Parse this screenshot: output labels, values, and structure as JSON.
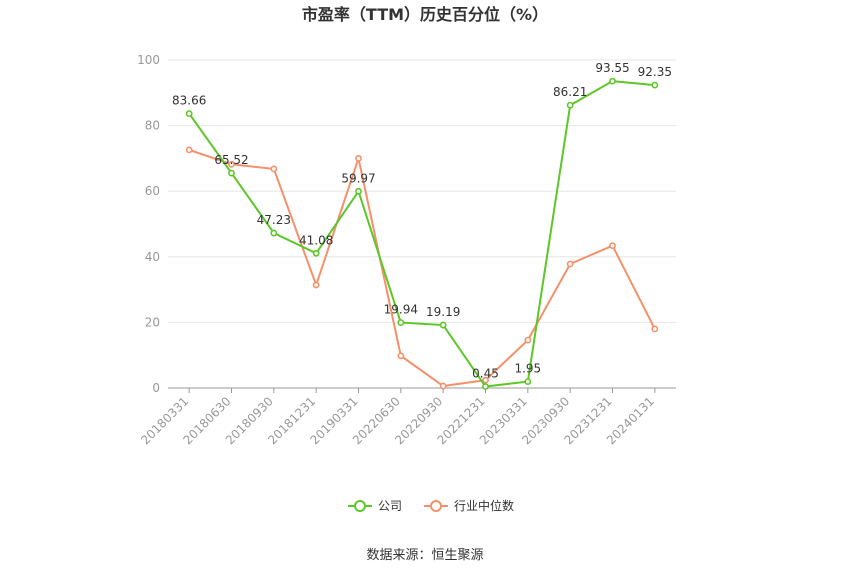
{
  "chart_data": {
    "type": "line",
    "title": "市盈率（TTM）历史百分位（%）",
    "categories": [
      "20180331",
      "20180630",
      "20180930",
      "20181231",
      "20190331",
      "20220630",
      "20220930",
      "20221231",
      "20230331",
      "20230930",
      "20231231",
      "20240131"
    ],
    "ylim": [
      0,
      100
    ],
    "yticks": [
      0,
      20,
      40,
      60,
      80,
      100
    ],
    "grid": true,
    "legend_position": "bottom",
    "series": [
      {
        "name": "公司",
        "color": "#5cc726",
        "values": [
          83.66,
          65.52,
          47.23,
          41.08,
          59.97,
          19.94,
          19.19,
          0.45,
          1.95,
          86.21,
          93.55,
          92.35
        ],
        "labels": [
          "83.66",
          "65.52",
          "47.23",
          "41.08",
          "59.97",
          "19.94",
          "19.19",
          "0.45",
          "1.95",
          "86.21",
          "93.55",
          "92.35"
        ]
      },
      {
        "name": "行业中位数",
        "color": "#f4916a",
        "values": [
          72.6,
          68.2,
          66.8,
          31.4,
          70.0,
          9.8,
          0.6,
          2.4,
          14.6,
          37.8,
          43.4,
          18.0
        ]
      }
    ]
  },
  "source": "数据来源：恒生聚源"
}
